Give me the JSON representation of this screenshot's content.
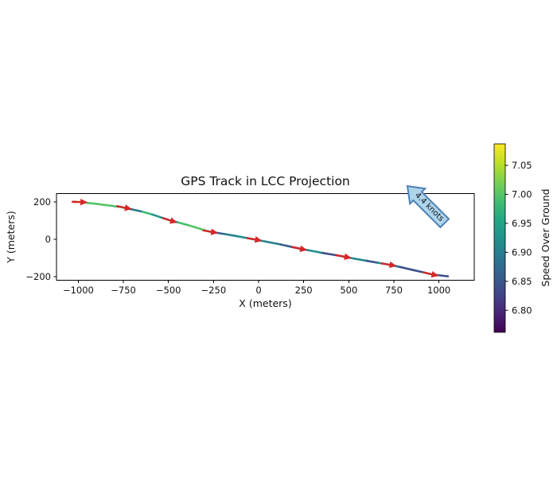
{
  "figure": {
    "title": "GPS Track in LCC Projection",
    "xlabel": "X (meters)",
    "ylabel": "Y (meters)",
    "colorbar_label": "Speed Over Ground",
    "annotation_text": "4.4 knots"
  },
  "chart_data": {
    "type": "line",
    "title": "GPS Track in LCC Projection",
    "xlabel": "X (meters)",
    "ylabel": "Y (meters)",
    "xlim": [
      -1121,
      1196
    ],
    "ylim": [
      -219,
      245
    ],
    "grid": false,
    "legend": "none",
    "xticks": [
      -1000,
      -750,
      -500,
      -250,
      0,
      250,
      500,
      750,
      1000
    ],
    "xtick_labels": [
      "−1000",
      "−750",
      "−500",
      "−250",
      "0",
      "250",
      "500",
      "750",
      "1000"
    ],
    "yticks": [
      -200,
      0,
      200
    ],
    "ytick_labels": [
      "−200",
      "0",
      "200"
    ],
    "track_xy_speed": [
      [
        -1025,
        201,
        6.85
      ],
      [
        -1012,
        200.5,
        7.08
      ],
      [
        -995,
        200,
        7.08
      ],
      [
        -985,
        199,
        7.0
      ],
      [
        -900,
        190,
        7.0
      ],
      [
        -820,
        180,
        6.99
      ],
      [
        -755,
        171,
        6.96
      ],
      [
        -730,
        166,
        6.86
      ],
      [
        -700,
        160,
        6.89
      ],
      [
        -645,
        148,
        6.98
      ],
      [
        -590,
        133,
        6.93
      ],
      [
        -540,
        117,
        6.91
      ],
      [
        -495,
        103,
        6.93
      ],
      [
        -445,
        90,
        6.99
      ],
      [
        -390,
        76,
        7.0
      ],
      [
        -320,
        55,
        7.0
      ],
      [
        -275,
        42,
        6.98
      ],
      [
        -245,
        37,
        6.86
      ],
      [
        -185,
        28,
        6.9
      ],
      [
        -120,
        17,
        6.92
      ],
      [
        -60,
        6,
        6.91
      ],
      [
        -25,
        0,
        6.92
      ],
      [
        40,
        -12,
        6.9
      ],
      [
        120,
        -27,
        6.86
      ],
      [
        185,
        -41,
        6.85
      ],
      [
        225,
        -49,
        6.91
      ],
      [
        285,
        -60,
        6.92
      ],
      [
        355,
        -73,
        6.84
      ],
      [
        430,
        -85,
        6.85
      ],
      [
        470,
        -92,
        6.92
      ],
      [
        535,
        -104,
        6.91
      ],
      [
        600,
        -115,
        6.85
      ],
      [
        660,
        -125,
        6.92
      ],
      [
        720,
        -135,
        6.89
      ],
      [
        785,
        -148,
        6.84
      ],
      [
        860,
        -165,
        6.84
      ],
      [
        915,
        -177,
        6.91
      ],
      [
        955,
        -186,
        6.87
      ],
      [
        1005,
        -193,
        6.84
      ],
      [
        1050,
        -198,
        6.84
      ]
    ],
    "direction_arrows_xy": [
      [
        -997,
        199.8
      ],
      [
        -750,
        171
      ],
      [
        -497,
        103.3
      ],
      [
        -272,
        41.6
      ],
      [
        -28,
        0.5
      ],
      [
        222,
        -48.4
      ],
      [
        468,
        -91.6
      ],
      [
        718,
        -134.7
      ],
      [
        952,
        -185.3
      ]
    ],
    "marker_color": "#d62728",
    "colorbar": {
      "label": "Speed Over Ground",
      "colormap": "viridis",
      "vmin": 6.762,
      "vmax": 7.087,
      "ticks": [
        6.8,
        6.85,
        6.9,
        6.95,
        7.0,
        7.05
      ],
      "tick_labels": [
        "6.80",
        "6.85",
        "6.90",
        "6.95",
        "7.00",
        "7.05"
      ],
      "position": "right"
    },
    "annotation": {
      "text": "4.4 knots",
      "fill": "#aed4ea",
      "edge": "#4e81b8",
      "direction_deg": 45
    }
  }
}
